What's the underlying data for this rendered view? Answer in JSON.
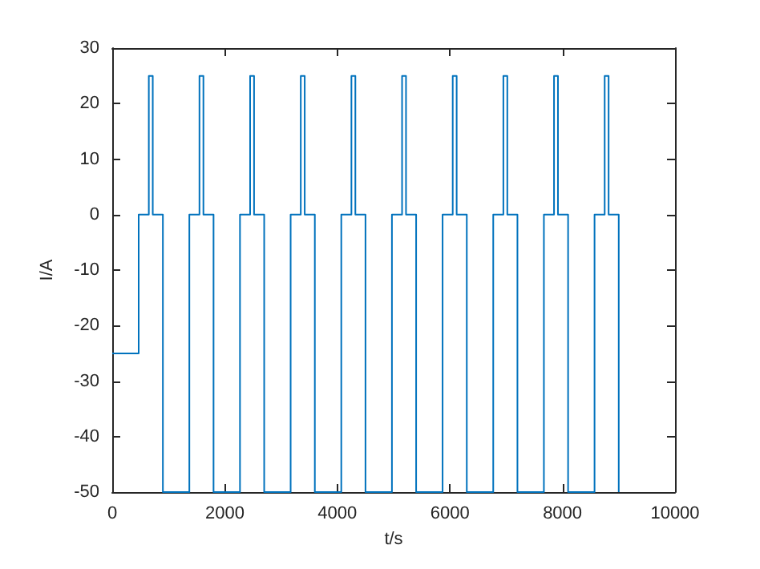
{
  "chart_data": {
    "type": "step",
    "xlabel": "t/s",
    "ylabel": "I/A",
    "xlim": [
      0,
      10000
    ],
    "xticks": [
      0,
      2000,
      4000,
      6000,
      8000,
      10000
    ],
    "ylim": [
      -50,
      30
    ],
    "yticks": [
      -50,
      -40,
      -30,
      -20,
      -10,
      0,
      10,
      20,
      30
    ],
    "grid": false,
    "marker": "none",
    "line_style": "solid",
    "series": [
      {
        "color": "#0072bd",
        "x": [
          0,
          470,
          650,
          720,
          900,
          1370,
          1550,
          1620,
          1800,
          2270,
          2450,
          2520,
          2700,
          3170,
          3350,
          3420,
          3600,
          4070,
          4250,
          4320,
          4500,
          4970,
          5150,
          5220,
          5400,
          5870,
          6050,
          6120,
          6300,
          6770,
          6950,
          7020,
          7200,
          7670,
          7850,
          7920,
          8100,
          8570,
          8750,
          8820,
          9000
        ],
        "values": [
          -25,
          0,
          25,
          0,
          -50,
          0,
          25,
          0,
          -50,
          0,
          25,
          0,
          -50,
          0,
          25,
          0,
          -50,
          0,
          25,
          0,
          -50,
          0,
          25,
          0,
          -50,
          0,
          25,
          0,
          -50,
          0,
          25,
          0,
          -50,
          0,
          25,
          0,
          -50,
          0,
          25,
          0,
          -50
        ]
      }
    ]
  }
}
